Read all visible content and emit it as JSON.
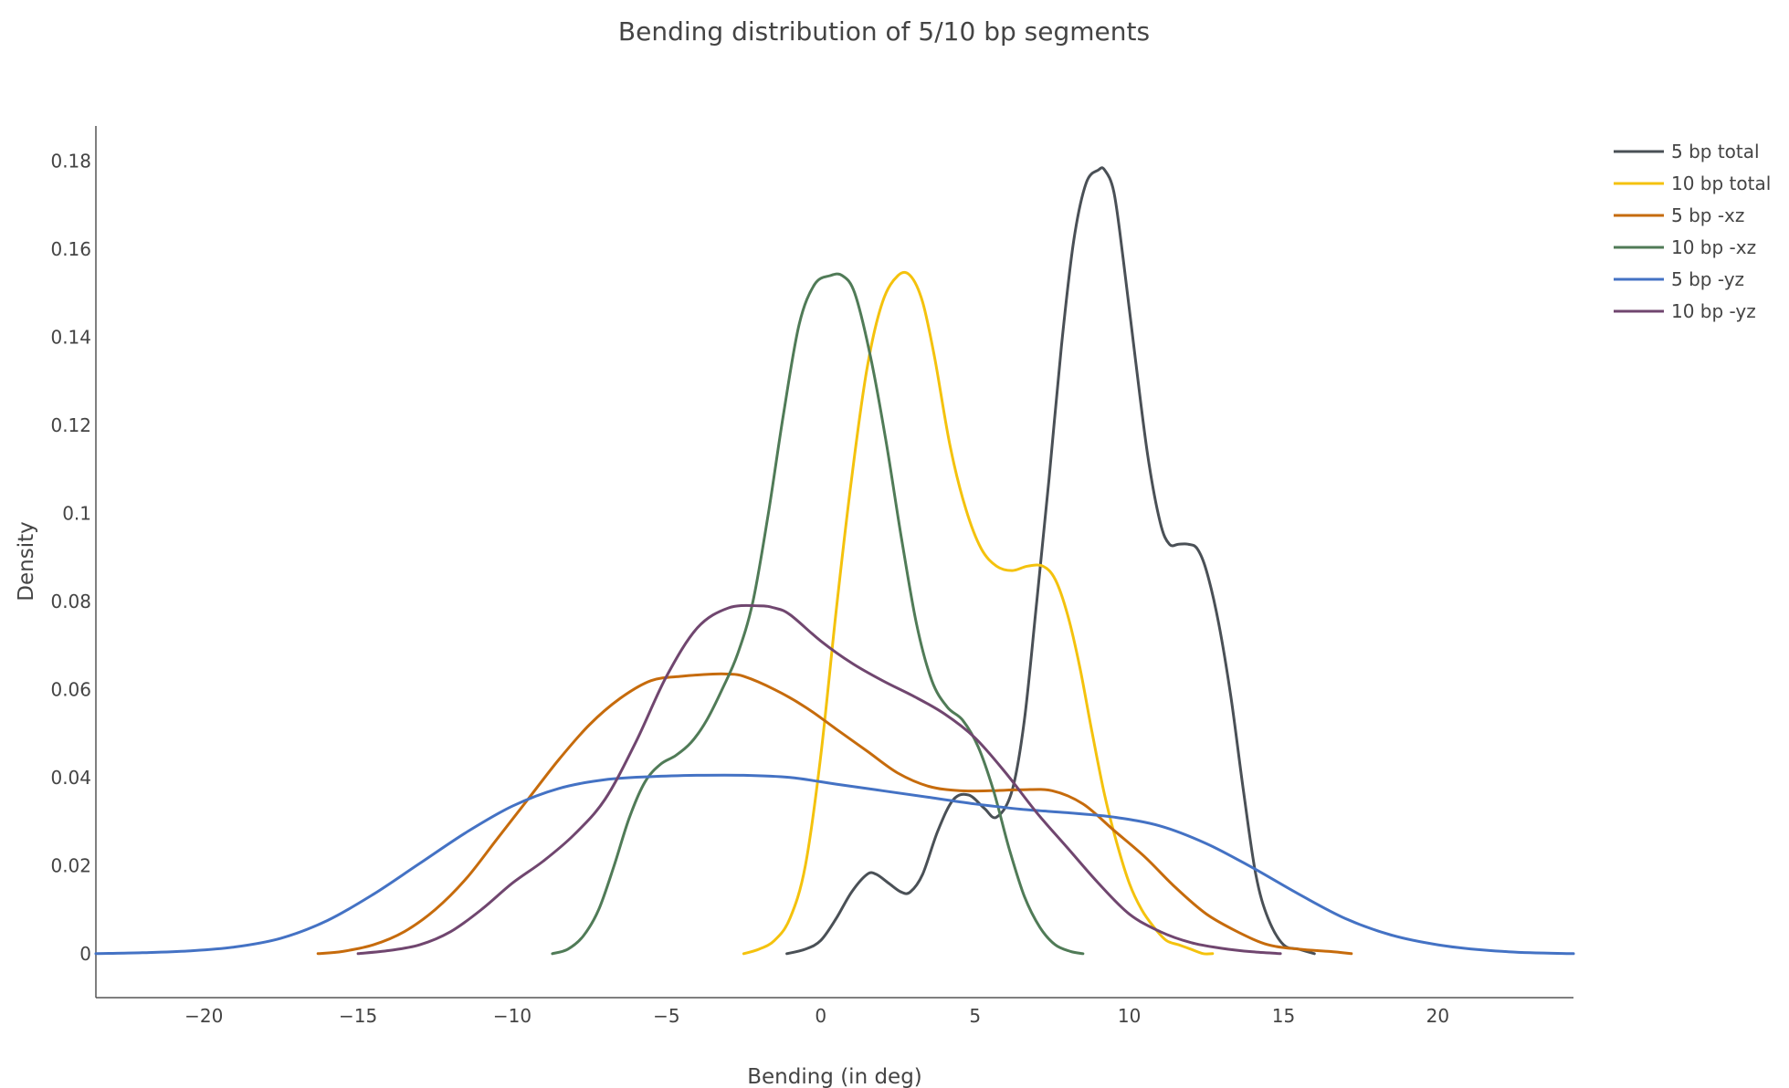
{
  "chart_data": {
    "type": "line",
    "title": "Bending distribution of 5/10 bp segments",
    "xlabel": "Bending (in deg)",
    "ylabel": "Density",
    "xlim": [
      -23.5,
      24.4
    ],
    "ylim": [
      -0.01,
      0.188
    ],
    "x_ticks": [
      -20,
      -15,
      -10,
      -5,
      0,
      5,
      10,
      15,
      20
    ],
    "x_tick_labels": [
      "−20",
      "−15",
      "−10",
      "−5",
      "0",
      "5",
      "10",
      "15",
      "20"
    ],
    "y_ticks": [
      0,
      0.02,
      0.04,
      0.06,
      0.08,
      0.1,
      0.12,
      0.14,
      0.16,
      0.18
    ],
    "y_tick_labels": [
      "0",
      "0.02",
      "0.04",
      "0.06",
      "0.08",
      "0.1",
      "0.12",
      "0.14",
      "0.16",
      "0.18"
    ],
    "grid": false,
    "legend_position": "top-right",
    "series": [
      {
        "name": "5 bp total",
        "color": "#4a5056",
        "x": [
          -1.1,
          -0.5,
          0,
          0.5,
          1,
          1.5,
          1.8,
          2.2,
          2.6,
          2.9,
          3.3,
          3.8,
          4.3,
          4.8,
          5.3,
          5.7,
          6.2,
          6.6,
          7.0,
          7.4,
          7.8,
          8.2,
          8.6,
          9.0,
          9.2,
          9.5,
          9.8,
          10.2,
          10.6,
          11.0,
          11.3,
          11.6,
          11.9,
          12.2,
          12.5,
          12.9,
          13.3,
          13.7,
          14.1,
          14.5,
          15.0,
          15.5,
          16.0
        ],
        "y": [
          0.0,
          0.001,
          0.003,
          0.008,
          0.014,
          0.018,
          0.018,
          0.016,
          0.014,
          0.014,
          0.018,
          0.028,
          0.035,
          0.036,
          0.033,
          0.031,
          0.037,
          0.053,
          0.08,
          0.108,
          0.138,
          0.162,
          0.175,
          0.178,
          0.178,
          0.173,
          0.158,
          0.135,
          0.113,
          0.098,
          0.093,
          0.093,
          0.093,
          0.092,
          0.087,
          0.075,
          0.058,
          0.037,
          0.018,
          0.008,
          0.002,
          0.001,
          0.0
        ]
      },
      {
        "name": "10 bp total",
        "color": "#f4c20d",
        "x": [
          -2.5,
          -2.0,
          -1.5,
          -1.0,
          -0.5,
          0,
          0.5,
          1.0,
          1.5,
          2.0,
          2.5,
          2.9,
          3.3,
          3.7,
          4.2,
          4.7,
          5.2,
          5.7,
          6.2,
          6.7,
          7.2,
          7.6,
          8.0,
          8.4,
          8.8,
          9.2,
          9.6,
          10.0,
          10.4,
          10.8,
          11.2,
          11.6,
          12.0,
          12.4,
          12.7
        ],
        "y": [
          0.0,
          0.001,
          0.003,
          0.008,
          0.02,
          0.045,
          0.078,
          0.108,
          0.133,
          0.148,
          0.154,
          0.154,
          0.148,
          0.135,
          0.115,
          0.101,
          0.092,
          0.088,
          0.087,
          0.088,
          0.088,
          0.085,
          0.077,
          0.065,
          0.05,
          0.036,
          0.025,
          0.016,
          0.01,
          0.006,
          0.003,
          0.002,
          0.001,
          0.0,
          0.0
        ]
      },
      {
        "name": "5 bp -xz",
        "color": "#c66b0c",
        "x": [
          -16.3,
          -15.5,
          -14.5,
          -13.5,
          -12.5,
          -11.5,
          -10.5,
          -9.5,
          -8.5,
          -7.5,
          -6.5,
          -5.5,
          -4.5,
          -3.5,
          -3.0,
          -2.5,
          -1.5,
          -0.5,
          0.5,
          1.5,
          2.5,
          3.5,
          4.5,
          5.5,
          6.5,
          7.5,
          8.5,
          9.5,
          10.5,
          11.5,
          12.5,
          13.5,
          14.5,
          15.5,
          16.5,
          17.2
        ],
        "y": [
          0.0,
          0.0005,
          0.002,
          0.005,
          0.01,
          0.017,
          0.026,
          0.035,
          0.044,
          0.052,
          0.058,
          0.062,
          0.063,
          0.0635,
          0.0635,
          0.063,
          0.06,
          0.056,
          0.051,
          0.046,
          0.041,
          0.038,
          0.037,
          0.037,
          0.0372,
          0.037,
          0.034,
          0.028,
          0.022,
          0.015,
          0.009,
          0.005,
          0.002,
          0.001,
          0.0005,
          0.0
        ]
      },
      {
        "name": "10 bp -xz",
        "color": "#507b57",
        "x": [
          -8.7,
          -8.2,
          -7.7,
          -7.2,
          -6.7,
          -6.2,
          -5.7,
          -5.2,
          -4.7,
          -4.2,
          -3.7,
          -3.2,
          -2.7,
          -2.2,
          -1.7,
          -1.2,
          -0.7,
          -0.2,
          0.3,
          0.7,
          1.1,
          1.6,
          2.1,
          2.6,
          3.1,
          3.6,
          4.1,
          4.6,
          5.1,
          5.6,
          6.1,
          6.6,
          7.1,
          7.6,
          8.1,
          8.5
        ],
        "y": [
          0.0,
          0.001,
          0.004,
          0.01,
          0.02,
          0.031,
          0.039,
          0.043,
          0.045,
          0.048,
          0.053,
          0.06,
          0.068,
          0.08,
          0.1,
          0.123,
          0.143,
          0.152,
          0.154,
          0.154,
          0.15,
          0.136,
          0.117,
          0.095,
          0.075,
          0.062,
          0.056,
          0.053,
          0.047,
          0.037,
          0.024,
          0.013,
          0.006,
          0.002,
          0.0005,
          0.0
        ]
      },
      {
        "name": "5 bp -yz",
        "color": "#4472c4",
        "x": [
          -23.5,
          -22.0,
          -20.5,
          -19.0,
          -17.5,
          -16.0,
          -14.5,
          -13.0,
          -11.5,
          -10.0,
          -8.5,
          -7.0,
          -5.5,
          -4.0,
          -2.5,
          -1.0,
          0.5,
          2.0,
          3.5,
          5.0,
          6.5,
          8.0,
          9.5,
          11.0,
          12.5,
          14.0,
          15.5,
          17.0,
          18.5,
          20.0,
          21.5,
          23.0,
          24.4
        ],
        "y": [
          0.0,
          0.0002,
          0.0006,
          0.0015,
          0.0035,
          0.0075,
          0.0135,
          0.0205,
          0.0275,
          0.0335,
          0.0375,
          0.0395,
          0.0402,
          0.0405,
          0.0405,
          0.04,
          0.0385,
          0.037,
          0.0355,
          0.034,
          0.0328,
          0.032,
          0.031,
          0.029,
          0.025,
          0.0195,
          0.0135,
          0.008,
          0.0042,
          0.002,
          0.0008,
          0.0002,
          0.0
        ]
      },
      {
        "name": "10 bp -yz",
        "color": "#70466f",
        "x": [
          -15.0,
          -14.0,
          -13.0,
          -12.0,
          -11.0,
          -10.0,
          -9.0,
          -8.0,
          -7.0,
          -6.0,
          -5.0,
          -4.0,
          -3.0,
          -2.0,
          -1.5,
          -1.0,
          0,
          1.0,
          2.0,
          3.0,
          4.0,
          5.0,
          6.0,
          7.0,
          8.0,
          9.0,
          10.0,
          11.0,
          12.0,
          13.0,
          14.0,
          14.9
        ],
        "y": [
          0.0,
          0.0007,
          0.002,
          0.005,
          0.01,
          0.016,
          0.021,
          0.027,
          0.035,
          0.048,
          0.063,
          0.074,
          0.0785,
          0.079,
          0.0785,
          0.077,
          0.071,
          0.066,
          0.062,
          0.0585,
          0.0545,
          0.049,
          0.041,
          0.032,
          0.024,
          0.016,
          0.009,
          0.005,
          0.0025,
          0.0012,
          0.0004,
          0.0
        ]
      }
    ]
  }
}
